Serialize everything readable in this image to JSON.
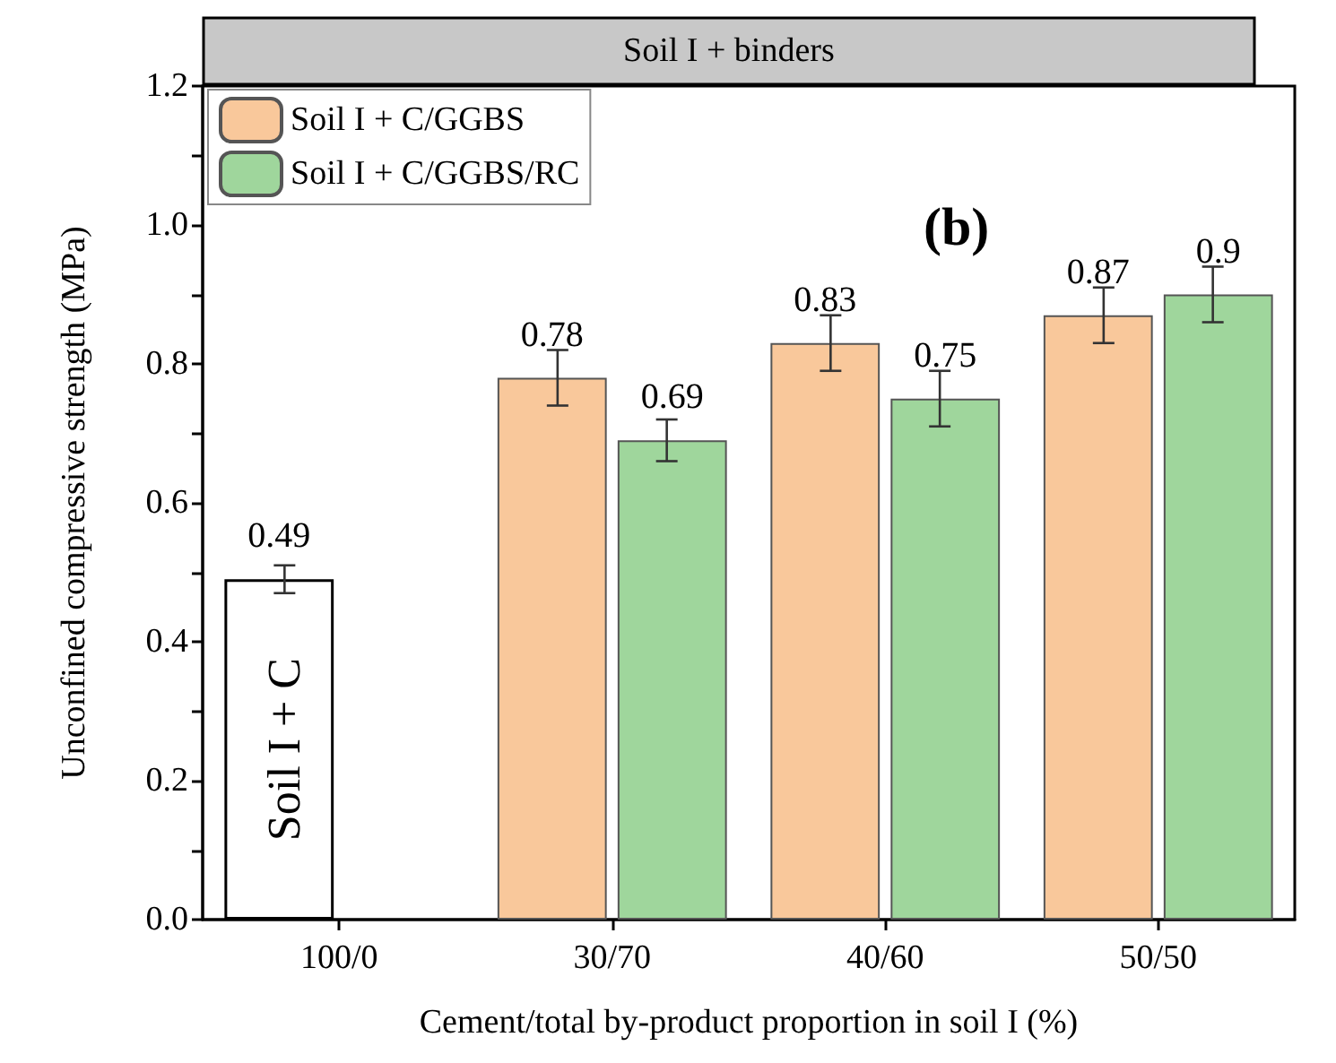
{
  "chart_data": {
    "type": "bar",
    "title": "Soil I + binders",
    "xlabel": "Cement/total by-product proportion in soil I (%)",
    "ylabel": "Unconfined compressive strength (MPa)",
    "categories": [
      "100/0",
      "30/70",
      "40/60",
      "50/50"
    ],
    "series": [
      {
        "name": "Soil I + C",
        "color": "#ffffff",
        "values": [
          0.49,
          null,
          null,
          null
        ],
        "errors": [
          0.02,
          null,
          null,
          null
        ]
      },
      {
        "name": "Soil I + C/GGBS",
        "color": "#f9c89b",
        "values": [
          null,
          0.78,
          0.83,
          0.87
        ],
        "errors": [
          null,
          0.04,
          0.04,
          0.04
        ]
      },
      {
        "name": "Soil I + C/GGBS/RC",
        "color": "#9fd69c",
        "values": [
          null,
          0.69,
          0.75,
          0.9
        ],
        "errors": [
          null,
          0.03,
          0.04,
          0.04
        ]
      }
    ],
    "ylim": [
      0,
      1.2
    ],
    "yticks": [
      {
        "value": 0,
        "label": "0.0"
      },
      {
        "value": 0.1,
        "label": null
      },
      0.2,
      {
        "value": 0.3,
        "label": null
      },
      0.4,
      {
        "value": 0.5,
        "label": null
      },
      0.6,
      {
        "value": 0.7,
        "label": null
      },
      0.8,
      {
        "value": 0.9,
        "label": null
      },
      {
        "value": 1,
        "label": "1.0"
      },
      {
        "value": 1.1,
        "label": null
      },
      1.2
    ],
    "annotations": [
      "(b)"
    ],
    "data_labels": true,
    "legend": "top left",
    "grid": false
  }
}
